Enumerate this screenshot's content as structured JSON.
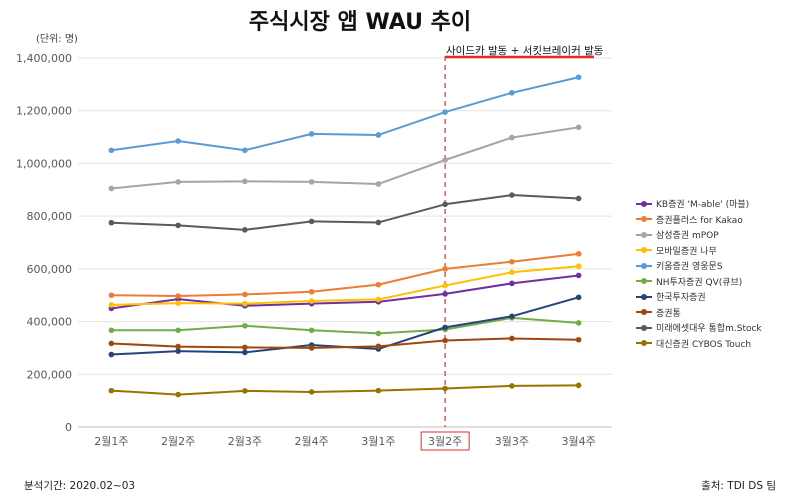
{
  "header": {
    "title": "주식시장 앱 WAU 추이",
    "unit_label": "(단위: 명)"
  },
  "annotation": {
    "text": "사이드카 발동 + 서킷브레이커 발동",
    "category": "3월2주",
    "marker_color": "#e52b2b"
  },
  "footer": {
    "period": "분석기간: 2020.02~03",
    "source": "출처: TDI DS 팀"
  },
  "chart_data": {
    "type": "line",
    "title": "주식시장 앱 WAU 추이",
    "xlabel": "",
    "ylabel": "",
    "ylim": [
      0,
      1400000
    ],
    "y_ticks": [
      0,
      200000,
      400000,
      600000,
      800000,
      1000000,
      1200000,
      1400000
    ],
    "y_tick_labels": [
      "0",
      "200,000",
      "400,000",
      "600,000",
      "800,000",
      "1,000,000",
      "1,200,000",
      "1,400,000"
    ],
    "grid": true,
    "legend_position": "right",
    "categories": [
      "2월1주",
      "2월2주",
      "2월3주",
      "2월4주",
      "3월1주",
      "3월2주",
      "3월3주",
      "3월4주"
    ],
    "highlight_category": "3월2주",
    "series": [
      {
        "name": "KB증권 'M-able' (마블)",
        "color": "#7030a0",
        "values": [
          450000,
          485000,
          460000,
          468000,
          475000,
          505000,
          545000,
          575000
        ]
      },
      {
        "name": "증권플러스 for Kakao",
        "color": "#ed7d31",
        "values": [
          500000,
          497000,
          503000,
          513000,
          540000,
          600000,
          627000,
          657000
        ]
      },
      {
        "name": "삼성증권 mPOP",
        "color": "#a5a5a5",
        "values": [
          905000,
          930000,
          932000,
          930000,
          922000,
          1013000,
          1098000,
          1137000
        ]
      },
      {
        "name": "모바일증권 나무",
        "color": "#ffc000",
        "values": [
          463000,
          470000,
          468000,
          478000,
          484000,
          537000,
          587000,
          610000
        ]
      },
      {
        "name": "키움증권 영웅문S",
        "color": "#5b9bd5",
        "values": [
          1050000,
          1085000,
          1050000,
          1112000,
          1108000,
          1195000,
          1268000,
          1327000
        ]
      },
      {
        "name": "NH투자증권 QV(큐브)",
        "color": "#70ad47",
        "values": [
          367000,
          367000,
          384000,
          367000,
          355000,
          370000,
          414000,
          395000
        ]
      },
      {
        "name": "한국투자증권",
        "color": "#264478",
        "values": [
          275000,
          288000,
          283000,
          311000,
          296000,
          378000,
          420000,
          492000
        ]
      },
      {
        "name": "증권통",
        "color": "#9e480e",
        "values": [
          317000,
          305000,
          302000,
          300000,
          306000,
          328000,
          336000,
          331000
        ]
      },
      {
        "name": "미래에셋대우 통합m.Stock",
        "color": "#5a5a5a",
        "values": [
          775000,
          765000,
          748000,
          780000,
          776000,
          845000,
          880000,
          867000
        ]
      },
      {
        "name": "대신증권 CYBOS Touch",
        "color": "#997300",
        "values": [
          138000,
          123000,
          137000,
          133000,
          138000,
          146000,
          156000,
          158000
        ]
      }
    ]
  }
}
